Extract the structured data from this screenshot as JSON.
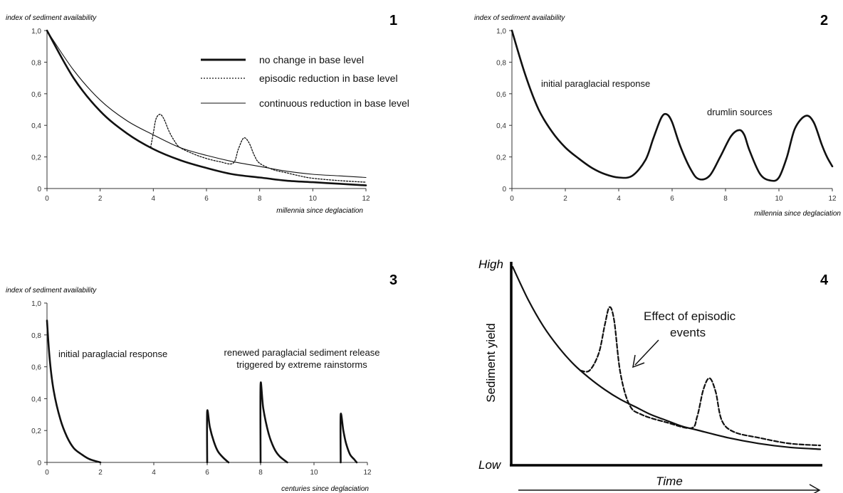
{
  "chart_data": [
    {
      "panel_number": "1",
      "type": "line",
      "ylabel": "index of sediment availability",
      "xlabel": "millennia since deglaciation",
      "xlim": [
        0,
        12
      ],
      "ylim": [
        0,
        1
      ],
      "x_ticks": [
        "0",
        "2",
        "4",
        "6",
        "8",
        "10",
        "12"
      ],
      "y_ticks": [
        "0",
        "0,2",
        "0,4",
        "0,6",
        "0,8",
        "1,0"
      ],
      "y_tick_values": [
        0,
        0.2,
        0.4,
        0.6,
        0.8,
        1.0
      ],
      "legend_position": "top-right",
      "series": [
        {
          "name": "no change in base level",
          "style": "thick",
          "x": [
            0,
            1,
            2,
            3,
            4,
            5,
            6,
            7,
            8,
            9,
            10,
            11,
            12
          ],
          "y": [
            1.0,
            0.7,
            0.49,
            0.35,
            0.25,
            0.18,
            0.13,
            0.09,
            0.07,
            0.05,
            0.04,
            0.03,
            0.02
          ]
        },
        {
          "name": "episodic reduction in base level",
          "style": "dotted",
          "x": [
            3.9,
            4.0,
            4.1,
            4.25,
            4.4,
            4.6,
            4.8,
            5.0,
            5.5,
            6.0,
            6.5,
            7.0,
            7.2,
            7.4,
            7.6,
            7.8,
            8.0,
            8.5,
            9.0,
            9.5,
            10.0,
            11.0,
            12.0
          ],
          "y": [
            0.26,
            0.35,
            0.44,
            0.47,
            0.44,
            0.36,
            0.3,
            0.26,
            0.22,
            0.19,
            0.17,
            0.16,
            0.25,
            0.32,
            0.29,
            0.21,
            0.16,
            0.12,
            0.1,
            0.08,
            0.065,
            0.05,
            0.04
          ]
        },
        {
          "name": "continuous reduction in base level",
          "style": "thin",
          "x": [
            0,
            1,
            2,
            3,
            4,
            5,
            6,
            7,
            8,
            9,
            10,
            11,
            12
          ],
          "y": [
            1.0,
            0.75,
            0.56,
            0.43,
            0.34,
            0.26,
            0.21,
            0.17,
            0.14,
            0.11,
            0.09,
            0.08,
            0.07
          ]
        }
      ]
    },
    {
      "panel_number": "2",
      "type": "line",
      "ylabel": "index of sediment availability",
      "xlabel": "millennia since deglaciation",
      "xlim": [
        0,
        12
      ],
      "ylim": [
        0,
        1
      ],
      "x_ticks": [
        "0",
        "2",
        "4",
        "6",
        "8",
        "10",
        "12"
      ],
      "y_ticks": [
        "0",
        "0,2",
        "0,4",
        "0,6",
        "0,8",
        "1,0"
      ],
      "y_tick_values": [
        0,
        0.2,
        0.4,
        0.6,
        0.8,
        1.0
      ],
      "annotations": [
        {
          "text": "initial paraglacial response",
          "x": 1.0,
          "y": 0.65
        },
        {
          "text": "drumlin sources",
          "x": 8.0,
          "y": 0.47
        }
      ],
      "series": [
        {
          "style": "thick",
          "x": [
            0,
            0.5,
            1,
            1.5,
            2,
            2.5,
            3,
            3.5,
            4,
            4.5,
            5,
            5.3,
            5.6,
            5.8,
            6.0,
            6.3,
            6.7,
            7.0,
            7.4,
            7.8,
            8.2,
            8.5,
            8.7,
            8.9,
            9.3,
            9.7,
            10.0,
            10.3,
            10.6,
            11.0,
            11.3,
            11.6,
            11.8,
            12.0
          ],
          "y": [
            1.0,
            0.72,
            0.5,
            0.36,
            0.26,
            0.19,
            0.13,
            0.09,
            0.07,
            0.08,
            0.18,
            0.32,
            0.45,
            0.47,
            0.42,
            0.27,
            0.12,
            0.06,
            0.08,
            0.2,
            0.33,
            0.37,
            0.34,
            0.24,
            0.09,
            0.05,
            0.07,
            0.2,
            0.38,
            0.46,
            0.42,
            0.28,
            0.2,
            0.14
          ]
        }
      ]
    },
    {
      "panel_number": "3",
      "type": "line",
      "ylabel": "index of sediment availability",
      "xlabel": "centuries since deglaciation",
      "xlim": [
        0,
        12
      ],
      "ylim": [
        0,
        1
      ],
      "x_ticks": [
        "0",
        "2",
        "4",
        "6",
        "8",
        "10",
        "12"
      ],
      "y_ticks": [
        "0",
        "0,2",
        "0,4",
        "0,6",
        "0,8",
        "1,0"
      ],
      "y_tick_values": [
        0,
        0.2,
        0.4,
        0.6,
        0.8,
        1.0
      ],
      "annotations": [
        {
          "text": "initial paraglacial response",
          "x": 0.2,
          "y": 0.7
        },
        {
          "text": "renewed paraglacial sediment release",
          "x": 8.5,
          "y": 0.75
        },
        {
          "text": "triggered by extreme rainstorms",
          "x": 8.5,
          "y": 0.67
        }
      ],
      "series": [
        {
          "style": "thick",
          "x": [
            0,
            0.1,
            0.25,
            0.5,
            0.75,
            1.0,
            1.3,
            1.6,
            2.0
          ],
          "y": [
            0.89,
            0.65,
            0.45,
            0.27,
            0.16,
            0.09,
            0.05,
            0.02,
            0
          ]
        },
        {
          "style": "thick",
          "x": [
            6.0,
            6.0,
            6.1,
            6.25,
            6.4,
            6.6,
            6.8
          ],
          "y": [
            0,
            0.32,
            0.22,
            0.13,
            0.07,
            0.03,
            0
          ]
        },
        {
          "style": "thick",
          "x": [
            8.0,
            8.0,
            8.1,
            8.3,
            8.5,
            8.7,
            9.0
          ],
          "y": [
            0,
            0.49,
            0.34,
            0.18,
            0.09,
            0.04,
            0
          ]
        },
        {
          "style": "thick",
          "x": [
            11.0,
            11.0,
            11.1,
            11.2,
            11.35,
            11.5,
            11.6
          ],
          "y": [
            0,
            0.3,
            0.2,
            0.12,
            0.05,
            0.02,
            0
          ]
        }
      ]
    },
    {
      "panel_number": "4",
      "type": "line",
      "ylabel": "Sediment yield",
      "xlabel": "Time",
      "y_high_label": "High",
      "y_low_label": "Low",
      "xlim": [
        0,
        1
      ],
      "ylim": [
        0,
        1
      ],
      "annotation": {
        "line1": "Effect of episodic",
        "line2": "events"
      },
      "series": [
        {
          "style": "solid",
          "x": [
            0,
            0.05,
            0.1,
            0.15,
            0.2,
            0.25,
            0.3,
            0.35,
            0.4,
            0.45,
            0.5,
            0.55,
            0.6,
            0.7,
            0.8,
            0.9,
            1.0
          ],
          "y": [
            1.0,
            0.83,
            0.69,
            0.58,
            0.49,
            0.42,
            0.36,
            0.31,
            0.27,
            0.23,
            0.2,
            0.17,
            0.15,
            0.11,
            0.08,
            0.06,
            0.05
          ]
        },
        {
          "style": "dashed",
          "x": [
            0.22,
            0.25,
            0.28,
            0.3,
            0.315,
            0.33,
            0.35,
            0.38,
            0.42,
            0.5,
            0.58,
            0.6,
            0.62,
            0.64,
            0.66,
            0.68,
            0.72,
            0.8,
            0.9,
            1.0
          ],
          "y": [
            0.46,
            0.46,
            0.55,
            0.7,
            0.79,
            0.72,
            0.45,
            0.28,
            0.23,
            0.19,
            0.16,
            0.22,
            0.36,
            0.42,
            0.35,
            0.2,
            0.14,
            0.11,
            0.08,
            0.07
          ]
        }
      ]
    }
  ]
}
